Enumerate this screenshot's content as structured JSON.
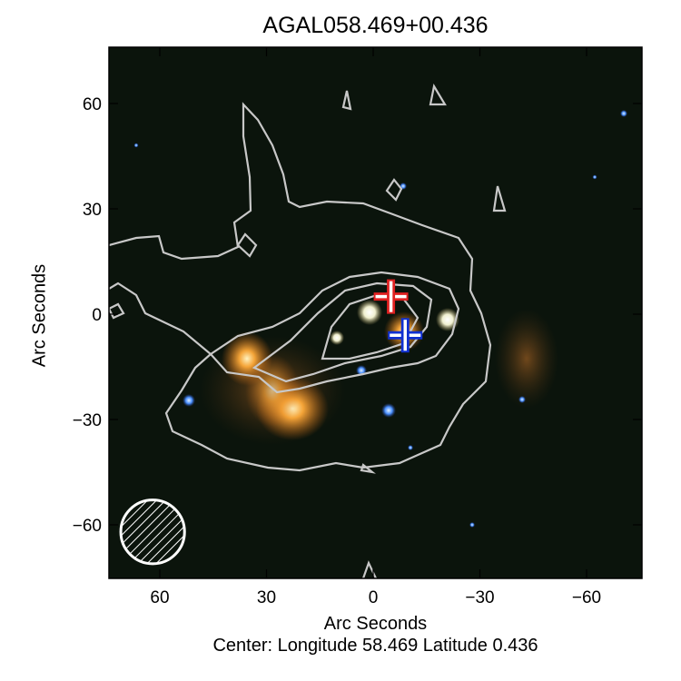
{
  "chart_data": {
    "type": "image",
    "title": "AGAL058.469+00.436",
    "xlabel": "Arc Seconds",
    "ylabel": "Arc Seconds",
    "caption": "Center:  Longitude 58.469 Latitude 0.436",
    "xlim": [
      75,
      -75
    ],
    "ylim": [
      -75,
      75
    ],
    "xticks": [
      60,
      30,
      0,
      -30,
      -60
    ],
    "yticks": [
      60,
      30,
      0,
      -30,
      -60
    ],
    "xtick_labels": [
      "60",
      "30",
      "0",
      "−30",
      "−60"
    ],
    "ytick_labels": [
      "60",
      "30",
      "0",
      "−30",
      "−60"
    ],
    "markers": [
      {
        "label": "",
        "x": -5,
        "y": 5,
        "color": "#e02020",
        "shape": "cross"
      },
      {
        "label": "",
        "x": -9,
        "y": -6,
        "color": "#1030d0",
        "shape": "cross"
      }
    ],
    "beam": {
      "x": 62,
      "y": -62,
      "radius": 9,
      "hatched": true
    },
    "contour_color": "#c8c8c8",
    "background_color": "#0b140c"
  }
}
